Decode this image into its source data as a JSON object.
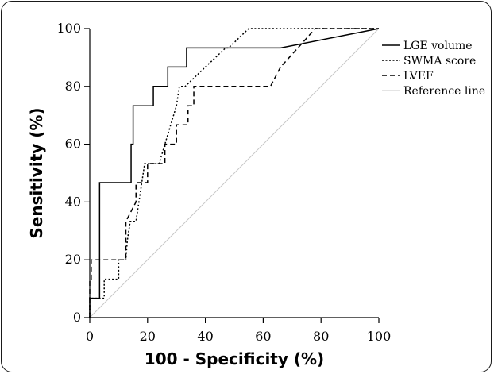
{
  "chart_data": {
    "type": "line",
    "title": "",
    "xlabel": "100 - Specificity (%)",
    "ylabel": "Sensitivity (%)",
    "xlim": [
      0,
      100
    ],
    "ylim": [
      0,
      100
    ],
    "xticks": [
      0,
      20,
      40,
      60,
      80,
      100
    ],
    "yticks": [
      0,
      20,
      40,
      60,
      80,
      100
    ],
    "grid": false,
    "legend_position": "top-right",
    "series": [
      {
        "name": "LGE volume",
        "style": "solid",
        "color": "#000000",
        "x": [
          0,
          0,
          3.4,
          3.4,
          14.3,
          14.3,
          15,
          15,
          22,
          22,
          27,
          27,
          33.5,
          33.5,
          66,
          100
        ],
        "y": [
          0,
          6.7,
          6.7,
          46.7,
          46.7,
          60,
          60,
          73.3,
          73.3,
          80,
          80,
          86.7,
          86.7,
          93.3,
          93.3,
          100
        ]
      },
      {
        "name": "SWMA score",
        "style": "dotted",
        "color": "#000000",
        "x": [
          0,
          0,
          2,
          4,
          5,
          5,
          8,
          10,
          10,
          12.5,
          13,
          14,
          16,
          17,
          18,
          19,
          20,
          22,
          24,
          26,
          28,
          30,
          31,
          33,
          40,
          47,
          48,
          55,
          66,
          75,
          100
        ],
        "y": [
          0,
          6.7,
          6.7,
          6.7,
          6.7,
          13.3,
          13.3,
          13.3,
          20,
          20,
          26.7,
          33.3,
          33.3,
          40,
          46.7,
          53.3,
          53.3,
          53.3,
          53.3,
          60,
          66.7,
          73.3,
          80,
          80,
          86.7,
          93.3,
          93.3,
          100,
          100,
          100,
          100
        ]
      },
      {
        "name": "LVEF",
        "style": "dashed",
        "color": "#000000",
        "x": [
          0,
          0,
          0.5,
          0.5,
          10,
          12.5,
          12.5,
          16,
          16,
          20,
          20,
          26,
          26,
          30,
          30,
          34,
          34,
          36,
          36,
          40,
          40,
          45,
          62.5,
          66,
          72,
          78,
          100
        ],
        "y": [
          0,
          13.3,
          13.3,
          20,
          20,
          20,
          33.3,
          40,
          46.7,
          46.7,
          53.3,
          53.3,
          60,
          60,
          66.7,
          66.7,
          73.3,
          73.3,
          80,
          80,
          80,
          80,
          80,
          86.7,
          93.3,
          100,
          100
        ]
      },
      {
        "name": "Reference line",
        "style": "solid",
        "color": "#c8c8c8",
        "x": [
          0,
          100
        ],
        "y": [
          0,
          100
        ]
      }
    ]
  }
}
